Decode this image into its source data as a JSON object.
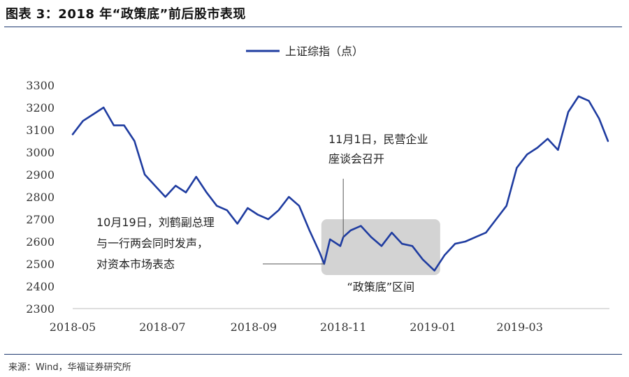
{
  "header": {
    "title": "图表 3：2018 年“政策底”前后股市表现"
  },
  "footer": {
    "source": "来源：Wind，华福证券研究所"
  },
  "colors": {
    "line": "#1f3ca0",
    "band": "#d3d3d3",
    "rule": "#1f3a70",
    "annotation": "#555555"
  },
  "chart_data": {
    "type": "line",
    "series": [
      {
        "name": "上证综指（点）",
        "x": [
          "2018-05-01",
          "2018-05-08",
          "2018-05-15",
          "2018-05-22",
          "2018-05-29",
          "2018-06-05",
          "2018-06-12",
          "2018-06-19",
          "2018-06-26",
          "2018-07-03",
          "2018-07-10",
          "2018-07-17",
          "2018-07-24",
          "2018-07-31",
          "2018-08-07",
          "2018-08-14",
          "2018-08-21",
          "2018-08-28",
          "2018-09-04",
          "2018-09-11",
          "2018-09-18",
          "2018-09-25",
          "2018-10-02",
          "2018-10-09",
          "2018-10-16",
          "2018-10-19",
          "2018-10-23",
          "2018-10-30",
          "2018-11-01",
          "2018-11-06",
          "2018-11-13",
          "2018-11-20",
          "2018-11-27",
          "2018-12-04",
          "2018-12-11",
          "2018-12-18",
          "2018-12-25",
          "2019-01-02",
          "2019-01-09",
          "2019-01-16",
          "2019-01-23",
          "2019-01-30",
          "2019-02-06",
          "2019-02-13",
          "2019-02-20",
          "2019-02-27",
          "2019-03-06",
          "2019-03-13",
          "2019-03-20",
          "2019-03-27",
          "2019-04-03",
          "2019-04-10",
          "2019-04-17",
          "2019-04-24",
          "2019-04-30"
        ],
        "y": [
          3080,
          3140,
          3170,
          3200,
          3120,
          3120,
          3050,
          2900,
          2850,
          2800,
          2850,
          2820,
          2890,
          2820,
          2760,
          2740,
          2680,
          2750,
          2720,
          2700,
          2740,
          2800,
          2760,
          2650,
          2550,
          2500,
          2610,
          2580,
          2620,
          2650,
          2670,
          2620,
          2580,
          2640,
          2590,
          2580,
          2520,
          2470,
          2540,
          2590,
          2600,
          2620,
          2640,
          2700,
          2760,
          2930,
          2990,
          3020,
          3060,
          3010,
          3180,
          3250,
          3230,
          3150,
          3050
        ]
      }
    ],
    "xticks": [
      "2018-05",
      "2018-07",
      "2018-09",
      "2018-11",
      "2019-01",
      "2019-03"
    ],
    "yticks": [
      2300,
      2400,
      2500,
      2600,
      2700,
      2800,
      2900,
      3000,
      3100,
      3200,
      3300
    ],
    "ylim": [
      2300,
      3300
    ],
    "grid": false,
    "legend": "top-center",
    "shaded_region": {
      "x_start": "2018-10-19",
      "x_end": "2019-01-04",
      "label": "“政策底”区间"
    },
    "annotations": [
      {
        "x": "2018-10-19",
        "y": 2500,
        "lines": [
          "10月19日，刘鹤副总理",
          "与一行两会同时发声，",
          "对资本市场表态"
        ]
      },
      {
        "x": "2018-11-01",
        "y": 2620,
        "lines": [
          "11月1日，民营企业",
          "座谈会召开"
        ]
      }
    ]
  }
}
